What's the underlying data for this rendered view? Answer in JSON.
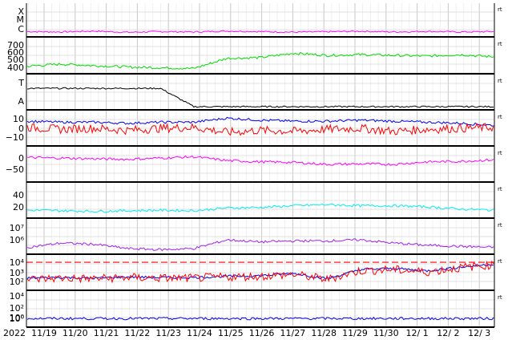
{
  "chart_data": {
    "type": "line",
    "year_label": "2022",
    "x_ticks": [
      "11/19",
      "11/20",
      "11/21",
      "11/22",
      "11/23",
      "11/24",
      "11/25",
      "11/26",
      "11/27",
      "11/28",
      "11/29",
      "11/30",
      "12/ 1",
      "12/ 2",
      "12/ 3"
    ],
    "right_marker": "rt",
    "grid": true,
    "colors": {
      "magenta": "#ff00ff",
      "green": "#00dd00",
      "lightblue": "#a8e4ff",
      "pink": "#ffbbee",
      "blue": "#0000ee",
      "red": "#ff0000",
      "violet": "#a020f0",
      "cyan": "#00eeee",
      "black": "#000000"
    },
    "panels": [
      {
        "id": "flare-class",
        "y_tick_labels": [
          "X",
          "M",
          "C"
        ],
        "series": [
          {
            "color": "magenta",
            "values": [
              0.12,
              0.1,
              0.15,
              0.08,
              0.12,
              0.1,
              0.15,
              0.12,
              0.09,
              0.11,
              0.14,
              0.1,
              0.13,
              0.1,
              0.12
            ]
          }
        ]
      },
      {
        "id": "solar-wind-speed",
        "y_tick_labels": [
          "700",
          "600",
          "500",
          "400"
        ],
        "ylim": [
          330,
          760
        ],
        "series": [
          {
            "color": "green",
            "values": [
              400,
              430,
              410,
              390,
              380,
              370,
              510,
              520,
              580,
              550,
              560,
              550,
              540,
              560,
              530
            ]
          }
        ]
      },
      {
        "id": "imf-sector",
        "y_tick_labels": [
          "T",
          "A"
        ],
        "series": [
          {
            "color": "black",
            "values": [
              1,
              1,
              1,
              1,
              1,
              0,
              0,
              0,
              0,
              0,
              0,
              0,
              0,
              0,
              0
            ]
          }
        ]
      },
      {
        "id": "imf-bt-bz",
        "y_tick_labels": [
          "10",
          "0",
          "−10"
        ],
        "ylim": [
          -15,
          15
        ],
        "series": [
          {
            "color": "blue",
            "values": [
              7,
              6,
              6,
              5,
              6,
              6,
              10,
              8,
              7,
              7,
              8,
              7,
              6,
              5,
              3
            ]
          },
          {
            "color": "red",
            "values": [
              1,
              -1,
              0,
              -2,
              0,
              1,
              -4,
              -2,
              -3,
              -1,
              0,
              -3,
              -1,
              0,
              1
            ]
          }
        ]
      },
      {
        "id": "dst-index",
        "y_tick_labels": [
          "0",
          "−50"
        ],
        "ylim": [
          -90,
          30
        ],
        "series": [
          {
            "color": "magenta",
            "values": [
              -3,
              -5,
              -8,
              -10,
              -5,
              0,
              -15,
              -20,
              -22,
              -30,
              -28,
              -30,
              -20,
              -18,
              -12
            ]
          }
        ]
      },
      {
        "id": "ae-index",
        "y_tick_labels": [
          "40",
          "20"
        ],
        "ylim": [
          0,
          55
        ],
        "series": [
          {
            "color": "cyan",
            "values": [
              10,
              9,
              8,
              9,
              10,
              9,
              14,
              15,
              18,
              20,
              18,
              18,
              16,
              12,
              10
            ]
          }
        ]
      },
      {
        "id": "proton-flux",
        "y_tick_labels": [
          "10⁷",
          "10⁶"
        ],
        "ylim": [
          5,
          7.8
        ],
        "series": [
          {
            "color": "violet",
            "values": [
              5.4,
              5.8,
              5.7,
              5.3,
              5.2,
              5.3,
              6.1,
              5.9,
              6.0,
              6.0,
              6.1,
              5.8,
              5.6,
              5.5,
              5.4
            ]
          }
        ]
      },
      {
        "id": "electron-flux",
        "y_tick_labels": [
          "10⁴",
          "10³",
          "10²",
          "10⁰"
        ],
        "ylim": [
          0,
          5
        ],
        "threshold": 3,
        "series": [
          {
            "color": "blue",
            "values": [
              1.6,
              1.7,
              1.6,
              1.8,
              1.7,
              1.7,
              1.9,
              2.0,
              2.4,
              1.5,
              3.0,
              3.2,
              2.8,
              3.4,
              3.9
            ]
          },
          {
            "color": "red",
            "values": [
              1.4,
              1.6,
              1.5,
              1.7,
              1.6,
              1.6,
              1.8,
              1.9,
              2.2,
              1.4,
              2.8,
              3.0,
              2.6,
              3.3,
              3.8
            ]
          }
        ]
      },
      {
        "id": "neutron-flux",
        "y_tick_labels": [
          "10⁴",
          "10²",
          "10⁰"
        ],
        "ylim": [
          -1,
          5
        ],
        "series": [
          {
            "color": "blue",
            "values": [
              0.2,
              0.2,
              0.2,
              0.2,
              0.2,
              0.2,
              0.2,
              0.2,
              0.2,
              0.2,
              0.2,
              0.2,
              0.2,
              0.2,
              0.2
            ]
          }
        ]
      }
    ]
  }
}
